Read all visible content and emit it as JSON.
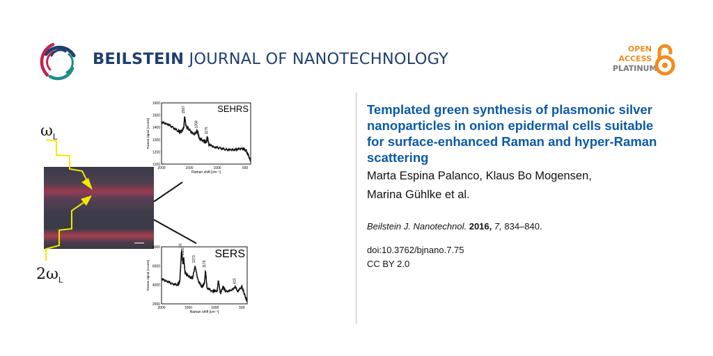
{
  "header": {
    "journal_name_bold": "BEILSTEIN",
    "journal_name_rest": " JOURNAL OF NANOTECHNOLOGY",
    "brand_colors": {
      "navy": "#203f6e",
      "crimson": "#c4204f",
      "teal": "#1f8a8c"
    },
    "open_access": {
      "line1": "OPEN",
      "line2": "ACCESS",
      "line3": "PLATINUM",
      "color": "#f28c1e",
      "icon": "open-lock-icon"
    }
  },
  "article": {
    "title": "Templated green synthesis of plasmonic silver nanoparticles in onion epidermal cells suitable for surface-enhanced Raman and hyper-Raman scattering",
    "authors_line1": "Marta Espina Palanco, Klaus Bo Mogensen,",
    "authors_line2": "Marina Gühlke et al.",
    "citation": {
      "journal": "Beilstein J. Nanotechnol.",
      "year": "2016,",
      "volume": "7,",
      "pages": "834–840."
    },
    "doi": "doi:10.3762/bjnano.7.75",
    "license": "CC BY 2.0",
    "title_color": "#0b5aa6"
  },
  "graphic": {
    "label_omega": "ω",
    "label_omega_sub": "L",
    "label_2omega": "2ω",
    "label_2omega_sub": "L",
    "beam_color": "#f5e800"
  },
  "chart_data": [
    {
      "type": "line",
      "title": "SEHRS",
      "xlabel": "Raman shift [cm⁻¹]",
      "ylabel": "Raman signal [counts]",
      "xlim": [
        2000,
        400
      ],
      "ylim": [
        1100,
        1600
      ],
      "xticks": [
        "2000",
        "1500",
        "1000",
        "500"
      ],
      "yticks": [
        "1100",
        "1200",
        "1300",
        "1400",
        "1500",
        "1600"
      ],
      "peak_labels": [
        "1587",
        "1358",
        "1175"
      ],
      "x": [
        2000,
        1900,
        1800,
        1700,
        1650,
        1600,
        1587,
        1560,
        1500,
        1420,
        1358,
        1320,
        1250,
        1200,
        1175,
        1150,
        1050,
        950,
        850,
        750,
        650,
        550,
        480,
        420,
        400
      ],
      "y": [
        1440,
        1430,
        1400,
        1370,
        1360,
        1400,
        1490,
        1410,
        1380,
        1340,
        1370,
        1310,
        1290,
        1280,
        1320,
        1260,
        1240,
        1230,
        1220,
        1215,
        1220,
        1230,
        1210,
        1150,
        1120
      ]
    },
    {
      "type": "line",
      "title": "SERS",
      "xlabel": "Raman shift [cm⁻¹]",
      "ylabel": "Raman signal [counts]",
      "xlim": [
        2000,
        400
      ],
      "ylim": [
        2000,
        8000
      ],
      "xticks": [
        "2000",
        "1500",
        "1000",
        "500"
      ],
      "yticks": [
        "2000",
        "4000",
        "6000",
        "8000"
      ],
      "peak_labels": [
        "1626",
        "1585",
        "1373",
        "1179",
        "615"
      ],
      "x": [
        2000,
        1900,
        1800,
        1700,
        1660,
        1626,
        1600,
        1585,
        1560,
        1500,
        1420,
        1373,
        1320,
        1250,
        1200,
        1179,
        1150,
        1050,
        1000,
        960,
        940,
        900,
        850,
        800,
        700,
        615,
        580,
        500,
        450,
        400
      ],
      "y": [
        4600,
        4400,
        4100,
        4000,
        4300,
        7600,
        6200,
        6800,
        5300,
        4900,
        4700,
        6000,
        4500,
        3800,
        4100,
        5500,
        3700,
        3300,
        3400,
        3300,
        4500,
        3100,
        3800,
        3300,
        3400,
        3800,
        3300,
        3800,
        3000,
        2200
      ]
    }
  ]
}
